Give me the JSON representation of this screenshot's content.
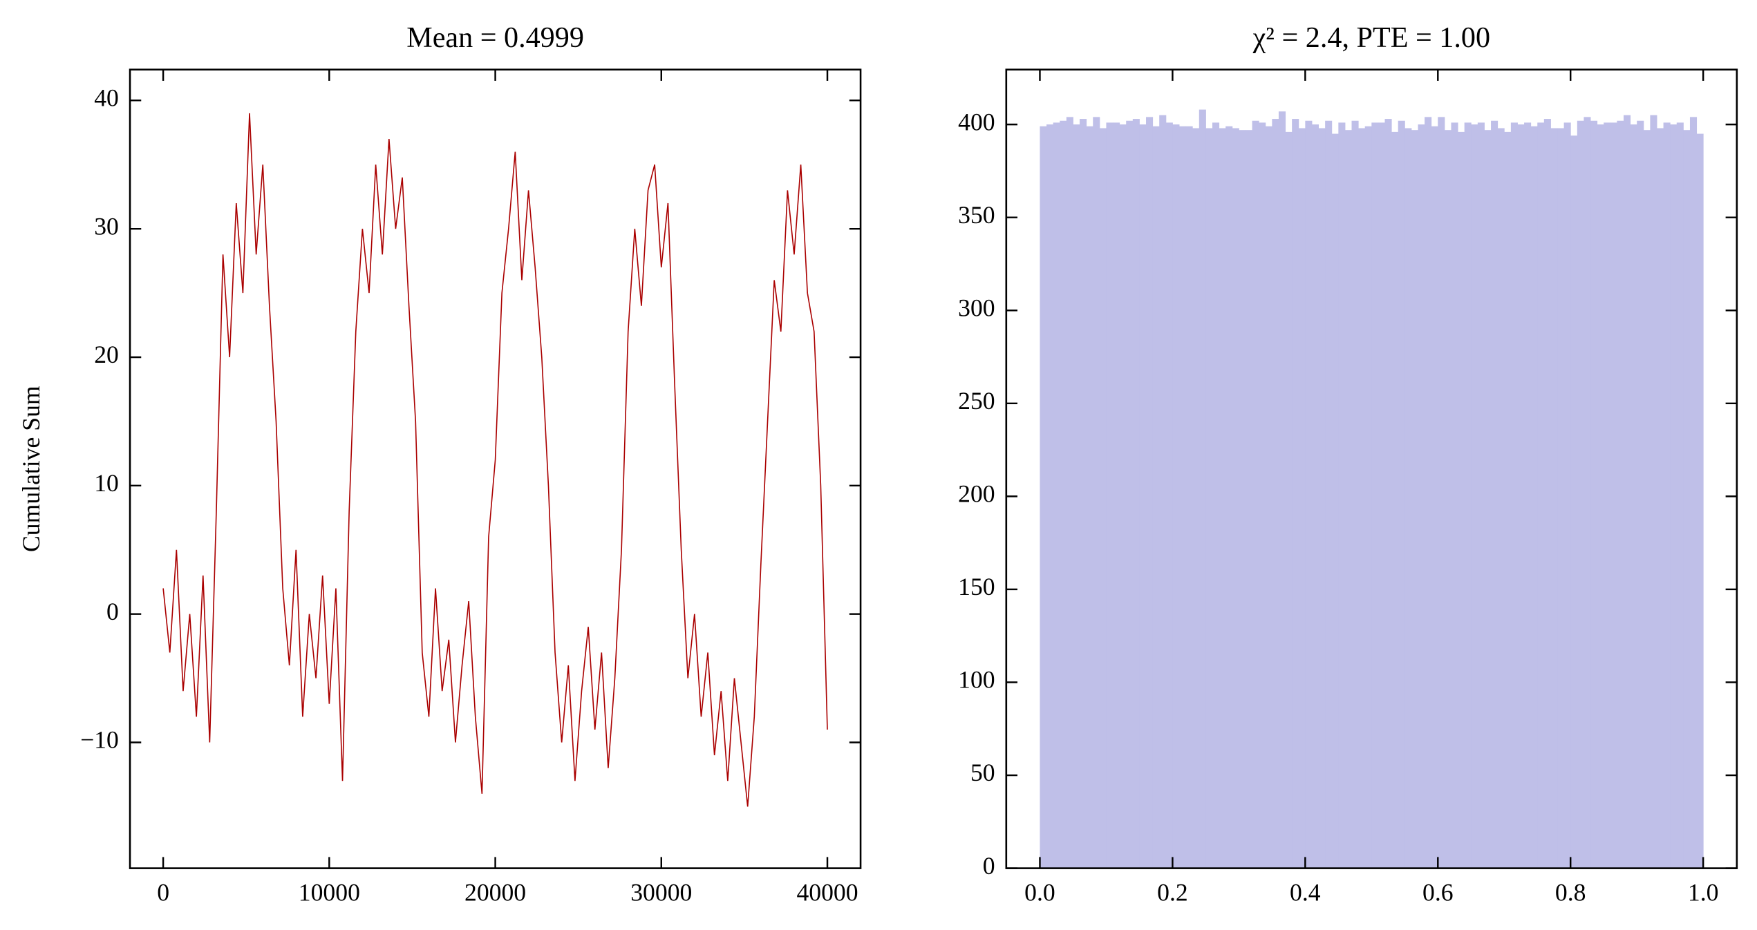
{
  "chart_data": [
    {
      "type": "line",
      "title": "Mean = 0.4999",
      "ylabel": "Cumulative Sum",
      "color": "#aa0000",
      "x": [
        0,
        400,
        800,
        1200,
        1600,
        2000,
        2400,
        2800,
        3200,
        3600,
        4000,
        4400,
        4800,
        5200,
        5600,
        6000,
        6400,
        6800,
        7200,
        7600,
        8000,
        8400,
        8800,
        9200,
        9600,
        10000,
        10400,
        10800,
        11200,
        11600,
        12000,
        12400,
        12800,
        13200,
        13600,
        14000,
        14400,
        14800,
        15200,
        15600,
        16000,
        16400,
        16800,
        17200,
        17600,
        18000,
        18400,
        18800,
        19200,
        19600,
        20000,
        20400,
        20800,
        21200,
        21600,
        22000,
        22400,
        22800,
        23200,
        23600,
        24000,
        24400,
        24800,
        25200,
        25600,
        26000,
        26400,
        26800,
        27200,
        27600,
        28000,
        28400,
        28800,
        29200,
        29600,
        30000,
        30400,
        30800,
        31200,
        31600,
        32000,
        32400,
        32800,
        33200,
        33600,
        34000,
        34400,
        34800,
        35200,
        35600,
        36000,
        36400,
        36800,
        37200,
        37600,
        38000,
        38400,
        38800,
        39200,
        39600,
        40000
      ],
      "values": [
        2,
        -3,
        5,
        -6,
        0,
        -8,
        3,
        -10,
        8,
        28,
        20,
        32,
        25,
        39,
        28,
        35,
        24,
        15,
        2,
        -4,
        5,
        -8,
        0,
        -5,
        3,
        -7,
        2,
        -13,
        8,
        22,
        30,
        25,
        35,
        28,
        37,
        30,
        34,
        24,
        15,
        -3,
        -8,
        2,
        -6,
        -2,
        -10,
        -4,
        1,
        -8,
        -14,
        6,
        12,
        25,
        30,
        36,
        26,
        33,
        27,
        20,
        10,
        -3,
        -10,
        -4,
        -13,
        -6,
        -1,
        -9,
        -3,
        -12,
        -5,
        5,
        22,
        30,
        24,
        33,
        35,
        27,
        32,
        18,
        5,
        -5,
        0,
        -8,
        -3,
        -11,
        -6,
        -13,
        -5,
        -10,
        -15,
        -8,
        4,
        15,
        26,
        22,
        33,
        28,
        35,
        25,
        22,
        10,
        -9
      ],
      "xlim": [
        -2000,
        42000
      ],
      "ylim": [
        -19.8,
        42.4
      ],
      "xticks": [
        0,
        10000,
        20000,
        30000,
        40000
      ],
      "yticks": [
        {
          "value": -10,
          "label": "−10"
        },
        0,
        10,
        20,
        30,
        40
      ]
    },
    {
      "type": "histogram",
      "title": "χ² = 2.4, PTE = 1.00",
      "color": "#bfbfe8",
      "bins": [
        0,
        0.01,
        0.02,
        0.03,
        0.04,
        0.05,
        0.06,
        0.07,
        0.08,
        0.09,
        0.1,
        0.11,
        0.12,
        0.13,
        0.14,
        0.15,
        0.16,
        0.17,
        0.18,
        0.19,
        0.2,
        0.21,
        0.22,
        0.23,
        0.24,
        0.25,
        0.26,
        0.27,
        0.28,
        0.29,
        0.3,
        0.31,
        0.32,
        0.33,
        0.34,
        0.35,
        0.36,
        0.37,
        0.38,
        0.39,
        0.4,
        0.41,
        0.42,
        0.43,
        0.44,
        0.45,
        0.46,
        0.47,
        0.48,
        0.49,
        0.5,
        0.51,
        0.52,
        0.53,
        0.54,
        0.55,
        0.56,
        0.57,
        0.58,
        0.59,
        0.6,
        0.61,
        0.62,
        0.63,
        0.64,
        0.65,
        0.66,
        0.67,
        0.68,
        0.69,
        0.7,
        0.71,
        0.72,
        0.73,
        0.74,
        0.75,
        0.76,
        0.77,
        0.78,
        0.79,
        0.8,
        0.81,
        0.82,
        0.83,
        0.84,
        0.85,
        0.86,
        0.87,
        0.88,
        0.89,
        0.9,
        0.91,
        0.92,
        0.93,
        0.94,
        0.95,
        0.96,
        0.97,
        0.98,
        0.99,
        1
      ],
      "values": [
        399,
        400,
        401,
        402,
        404,
        400,
        403,
        399,
        404,
        398,
        401,
        401,
        400,
        402,
        403,
        400,
        404,
        399,
        405,
        401,
        400,
        399,
        399,
        398,
        408,
        398,
        401,
        398,
        399,
        398,
        397,
        397,
        402,
        401,
        399,
        403,
        407,
        396,
        403,
        398,
        402,
        400,
        398,
        402,
        395,
        401,
        397,
        402,
        398,
        399,
        401,
        401,
        403,
        396,
        402,
        398,
        397,
        400,
        404,
        399,
        404,
        397,
        401,
        396,
        401,
        400,
        401,
        397,
        402,
        398,
        396,
        401,
        400,
        401,
        399,
        401,
        403,
        398,
        398,
        401,
        394,
        402,
        404,
        402,
        400,
        401,
        401,
        402,
        405,
        400,
        402,
        397,
        405,
        398,
        401,
        400,
        401,
        397,
        404,
        395
      ],
      "xlim": [
        -0.0507,
        1.0507
      ],
      "ylim": [
        0,
        429.5
      ],
      "xticks": [
        {
          "value": 0,
          "label": "0.0"
        },
        0.2,
        0.4,
        0.6,
        0.8,
        {
          "value": 1,
          "label": "1.0"
        }
      ],
      "yticks": [
        0,
        50,
        100,
        150,
        200,
        250,
        300,
        350,
        400
      ]
    }
  ]
}
